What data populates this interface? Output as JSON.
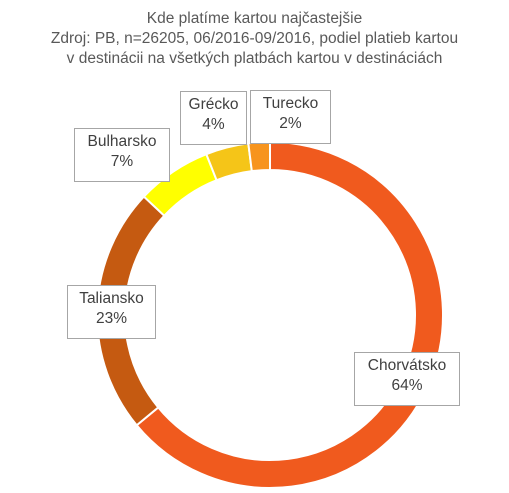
{
  "chart_data": {
    "type": "pie",
    "donut": true,
    "title": "Kde platíme kartou najčastejšie",
    "subtitle_lines": [
      "Zdroj: PB, n=26205, 06/2016-09/2016, podiel platieb kartou",
      "v destinácii na všetkých platbách kartou v destináciách"
    ],
    "slices": [
      {
        "label": "Chorvátsko",
        "value": 64,
        "value_label": "64%",
        "color": "#f05a1e"
      },
      {
        "label": "Taliansko",
        "value": 23,
        "value_label": "23%",
        "color": "#c55a11"
      },
      {
        "label": "Bulharsko",
        "value": 7,
        "value_label": "7%",
        "color": "#ffff00"
      },
      {
        "label": "Grécko",
        "value": 4,
        "value_label": "4%",
        "color": "#f5c518"
      },
      {
        "label": "Turecko",
        "value": 2,
        "value_label": "2%",
        "color": "#f7941d"
      }
    ],
    "legend": "none",
    "data_labels": "callout boxes with category name and percentage"
  }
}
